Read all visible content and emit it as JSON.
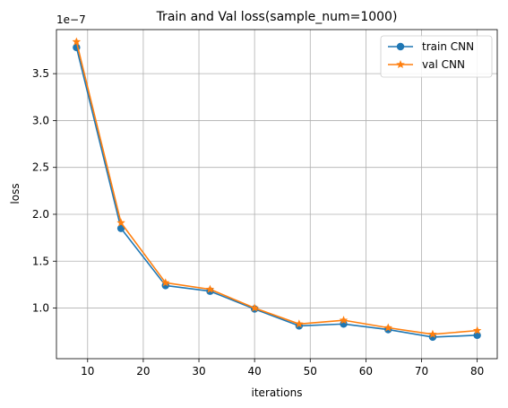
{
  "chart_data": {
    "type": "line",
    "title": "Train and Val loss(sample_num=1000)",
    "xlabel": "iterations",
    "ylabel": "loss",
    "y_offset_label": "1e−7",
    "xlim": [
      4.4,
      83.6
    ],
    "ylim": [
      0.46,
      3.97
    ],
    "x_ticks": [
      10,
      20,
      30,
      40,
      50,
      60,
      70,
      80
    ],
    "y_ticks": [
      1.0,
      1.5,
      2.0,
      2.5,
      3.0,
      3.5
    ],
    "x_tick_labels": [
      "10",
      "20",
      "30",
      "40",
      "50",
      "60",
      "70",
      "80"
    ],
    "y_tick_labels": [
      "1.0",
      "1.5",
      "2.0",
      "2.5",
      "3.0",
      "3.5"
    ],
    "grid": true,
    "legend_position": "top-right",
    "x": [
      8,
      16,
      24,
      32,
      40,
      48,
      56,
      64,
      72,
      80
    ],
    "series": [
      {
        "name": "train CNN",
        "color": "#1f77b4",
        "marker": "circle",
        "values": [
          3.78,
          1.85,
          1.24,
          1.18,
          0.99,
          0.81,
          0.83,
          0.77,
          0.69,
          0.71
        ]
      },
      {
        "name": "val CNN",
        "color": "#ff7f0e",
        "marker": "star",
        "values": [
          3.84,
          1.91,
          1.27,
          1.2,
          1.0,
          0.83,
          0.87,
          0.79,
          0.72,
          0.76
        ]
      }
    ]
  }
}
